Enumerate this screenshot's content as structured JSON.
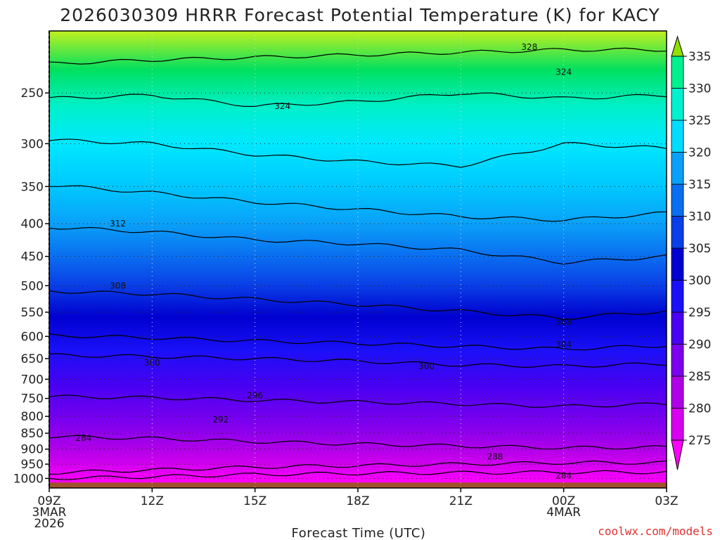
{
  "chart_data": {
    "type": "heatmap",
    "title": "2026030309 HRRR Forecast Potential Temperature (K) for KACY",
    "xlabel": "Forecast Time (UTC)",
    "ylabel": "",
    "x_ticks": [
      {
        "lines": [
          "09Z",
          "3MAR",
          "2026"
        ]
      },
      {
        "lines": [
          "12Z"
        ]
      },
      {
        "lines": [
          "15Z"
        ]
      },
      {
        "lines": [
          "18Z"
        ]
      },
      {
        "lines": [
          "21Z"
        ]
      },
      {
        "lines": [
          "00Z",
          "4MAR"
        ]
      },
      {
        "lines": [
          "03Z"
        ]
      }
    ],
    "x_hours": [
      0,
      3,
      6,
      9,
      12,
      15,
      18
    ],
    "y_axis": {
      "scale": "log-pressure",
      "reversed": true,
      "ylim": [
        1035,
        200
      ]
    },
    "y_ticks": [
      250,
      300,
      350,
      400,
      450,
      500,
      550,
      600,
      650,
      700,
      750,
      800,
      850,
      900,
      950,
      1000
    ],
    "grid": true,
    "colorbar": {
      "levels": [
        275,
        280,
        285,
        290,
        295,
        300,
        305,
        310,
        315,
        320,
        325,
        330,
        335
      ],
      "colors": [
        "#ff00ff",
        "#d800f0",
        "#b000e8",
        "#7d00ee",
        "#4a00f2",
        "#1a10f8",
        "#0000d0",
        "#0a3ee6",
        "#0a6ef0",
        "#0aa0f8",
        "#00dcff",
        "#00f0d0",
        "#00f090",
        "#00e060",
        "#90e000"
      ],
      "extend": "both"
    },
    "contours": [
      {
        "theta": 284,
        "levels": [
          1000,
          994,
          986,
          982,
          980,
          978,
          978
        ]
      },
      {
        "theta": 288,
        "levels": [
          980,
          970,
          960,
          955,
          950,
          945,
          945
        ]
      },
      {
        "theta": 292,
        "levels": [
          860,
          866,
          876,
          884,
          890,
          896,
          894
        ]
      },
      {
        "theta": 296,
        "levels": [
          745,
          748,
          755,
          760,
          765,
          772,
          765
        ]
      },
      {
        "theta": 300,
        "levels": [
          642,
          645,
          650,
          656,
          665,
          668,
          662
        ]
      },
      {
        "theta": 304,
        "levels": [
          598,
          603,
          610,
          615,
          622,
          628,
          620
        ]
      },
      {
        "theta": 308,
        "levels": [
          510,
          515,
          525,
          535,
          548,
          562,
          548
        ]
      },
      {
        "theta": 312,
        "levels": [
          405,
          412,
          424,
          430,
          440,
          460,
          450
        ]
      },
      {
        "theta": 316,
        "levels": [
          348,
          358,
          370,
          380,
          390,
          395,
          385
        ]
      },
      {
        "theta": 320,
        "levels": [
          296,
          300,
          312,
          320,
          325,
          300,
          305
        ]
      },
      {
        "theta": 324,
        "levels": [
          255,
          252,
          262,
          258,
          250,
          255,
          252
        ]
      },
      {
        "theta": 328,
        "levels": [
          225,
          222,
          220,
          218,
          216,
          214,
          214
        ]
      }
    ],
    "contour_labels": [
      {
        "text": "328",
        "x_hour": 14.0,
        "p": 212
      },
      {
        "text": "324",
        "x_hour": 15.0,
        "p": 232
      },
      {
        "text": "324",
        "x_hour": 6.8,
        "p": 262
      },
      {
        "text": "312",
        "x_hour": 2.0,
        "p": 400
      },
      {
        "text": "308",
        "x_hour": 2.0,
        "p": 500
      },
      {
        "text": "308",
        "x_hour": 15.0,
        "p": 570
      },
      {
        "text": "304",
        "x_hour": 15.0,
        "p": 618
      },
      {
        "text": "300",
        "x_hour": 3.0,
        "p": 660
      },
      {
        "text": "300",
        "x_hour": 11.0,
        "p": 668
      },
      {
        "text": "296",
        "x_hour": 6.0,
        "p": 742
      },
      {
        "text": "292",
        "x_hour": 5.0,
        "p": 810
      },
      {
        "text": "288",
        "x_hour": 13.0,
        "p": 925
      },
      {
        "text": "284",
        "x_hour": 1.0,
        "p": 865
      },
      {
        "text": "284",
        "x_hour": 15.0,
        "p": 990
      }
    ],
    "credit": "coolwx.com/models"
  }
}
